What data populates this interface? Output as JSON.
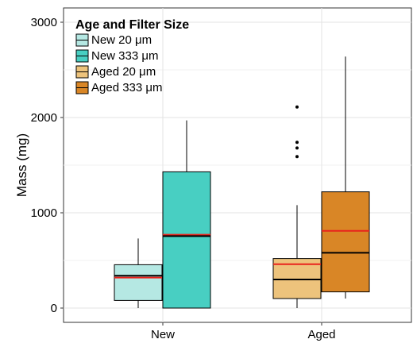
{
  "chart_data": {
    "type": "box",
    "title": "",
    "xlabel": "",
    "ylabel": "Mass (mg)",
    "ylim": [
      -150,
      3180
    ],
    "yticks": [
      0,
      1000,
      2000,
      3000
    ],
    "ytick_labels": [
      "0",
      "1000",
      "2000",
      "3000"
    ],
    "categories": [
      "New",
      "Aged"
    ],
    "grid": true,
    "legend": {
      "title": "Age and Filter Size",
      "placement": "top-left",
      "entries": [
        "New 20 μm",
        "New 333 μm",
        "Aged 20 μm",
        "Aged 333 μm"
      ]
    },
    "series": [
      {
        "name": "New 20 μm",
        "category": "New",
        "color": "#b5e8e3",
        "whisker_low": 0,
        "q1": 80,
        "median": 340,
        "q3": 455,
        "whisker_high": 730,
        "mean": 320,
        "outliers": []
      },
      {
        "name": "New 333 μm",
        "category": "New",
        "color": "#48cfc2",
        "whisker_low": 0,
        "q1": 0,
        "median": 755,
        "q3": 1430,
        "whisker_high": 1970,
        "mean": 770,
        "outliers": []
      },
      {
        "name": "Aged 20 μm",
        "category": "Aged",
        "color": "#edc37c",
        "whisker_low": 0,
        "q1": 100,
        "median": 300,
        "q3": 520,
        "whisker_high": 1080,
        "mean": 460,
        "outliers": [
          1590,
          1680,
          1740,
          2110
        ]
      },
      {
        "name": "Aged 333 μm",
        "category": "Aged",
        "color": "#d98626",
        "whisker_low": 100,
        "q1": 170,
        "median": 580,
        "q3": 1220,
        "whisker_high": 2640,
        "mean": 810,
        "outliers": []
      }
    ],
    "mean_line_color": "#e8231c",
    "median_line_color": "#000000"
  }
}
